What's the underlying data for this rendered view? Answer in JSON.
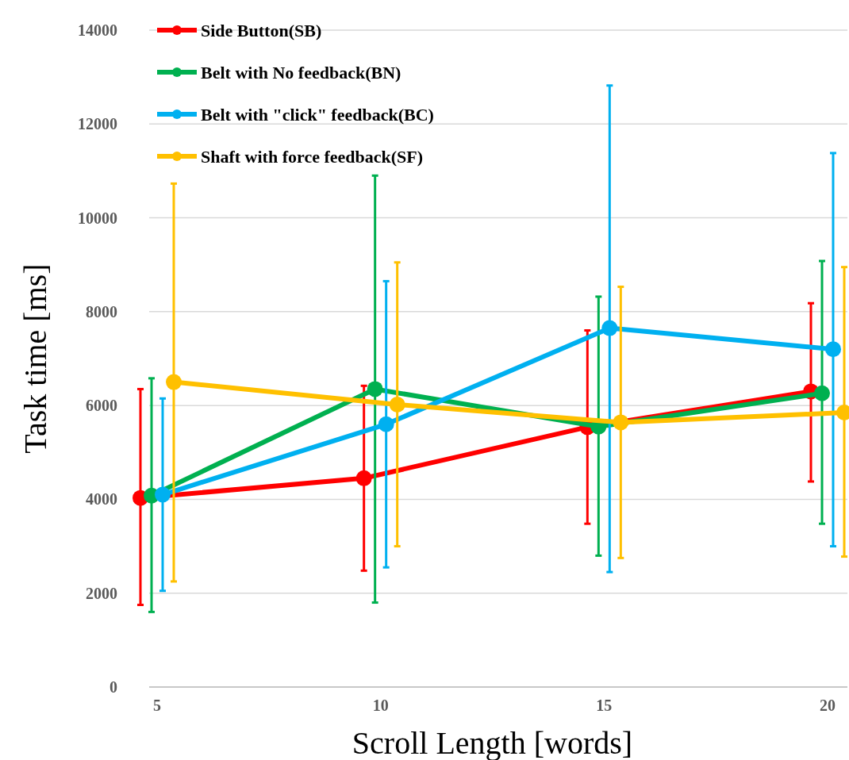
{
  "chart_data": {
    "type": "line",
    "xlabel": "Scroll Length [words]",
    "ylabel": "Task time [ms]",
    "categories": [
      "5",
      "10",
      "15",
      "20"
    ],
    "ylim": [
      0,
      14000
    ],
    "yticks": [
      0,
      2000,
      4000,
      6000,
      8000,
      10000,
      12000,
      14000
    ],
    "grid": "y",
    "legend": "top left",
    "marker": "circle",
    "line_style": "solid",
    "series": [
      {
        "name": "Side Button(SB)",
        "color": "#ff0000",
        "values": [
          4030,
          4450,
          5540,
          6300
        ],
        "errors": [
          [
            1750,
            6350
          ],
          [
            2480,
            6420
          ],
          [
            3480,
            7600
          ],
          [
            4380,
            8180
          ]
        ]
      },
      {
        "name": "Belt with No feedback(BN)",
        "color": "#00b050",
        "values": [
          4080,
          6350,
          5550,
          6260
        ],
        "errors": [
          [
            1600,
            6580
          ],
          [
            1800,
            10900
          ],
          [
            2800,
            8320
          ],
          [
            3480,
            9080
          ]
        ]
      },
      {
        "name": "Belt with \"click\" feedback(BC)",
        "color": "#00b0f0",
        "values": [
          4100,
          5600,
          7650,
          7200
        ],
        "errors": [
          [
            2050,
            6150
          ],
          [
            2550,
            8650
          ],
          [
            2450,
            12820
          ],
          [
            3000,
            11380
          ]
        ]
      },
      {
        "name": "Shaft with force feedback(SF)",
        "color": "#ffc000",
        "values": [
          6500,
          6020,
          5640,
          5850
        ],
        "errors": [
          [
            2250,
            10730
          ],
          [
            3000,
            9050
          ],
          [
            2750,
            8530
          ],
          [
            2780,
            8950
          ]
        ]
      }
    ]
  }
}
